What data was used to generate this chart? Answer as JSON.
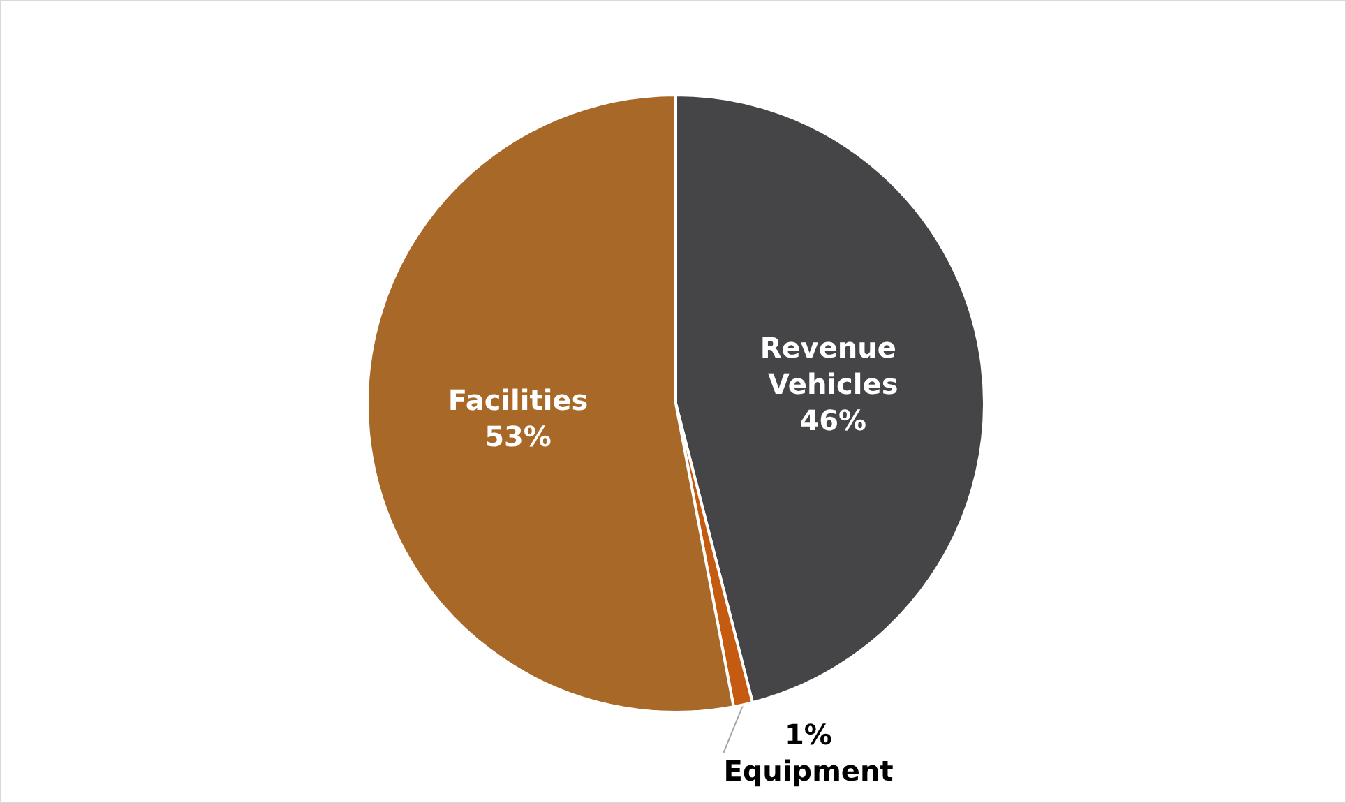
{
  "chart_data": {
    "type": "pie",
    "categories": [
      "Revenue Vehicles",
      "Equipment",
      "Facilities"
    ],
    "values": [
      46,
      1,
      53
    ],
    "colors": [
      "#454547",
      "#c55a11",
      "#a86828"
    ],
    "value_labels": [
      "46%",
      "1%",
      "53%"
    ]
  }
}
